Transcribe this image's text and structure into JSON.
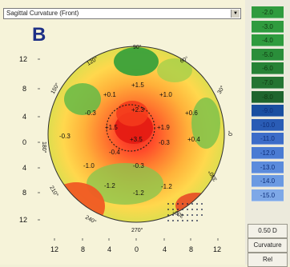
{
  "panel_label": "B",
  "map_selector": {
    "selected": "Sagittal Curvature (Front)",
    "arrow": "▼"
  },
  "axis_labels": {
    "left": [
      "12",
      "8",
      "4",
      "0",
      "4",
      "8",
      "12"
    ],
    "bottom": [
      "12",
      "8",
      "4",
      "0",
      "4",
      "8",
      "12"
    ]
  },
  "angle_labels": [
    "90°",
    "60°",
    "30°",
    "0°",
    "330°",
    "300°",
    "270°",
    "240°",
    "210°",
    "180°",
    "150°",
    "120°"
  ],
  "map_values": [
    "+1.5",
    "+0.1",
    "+1.0",
    "-0.3",
    "+2.3",
    "+0.6",
    "-0.3",
    "+1.5",
    "+1.9",
    "+3.5",
    "-0.3",
    "-0.4",
    "+0.4",
    "-1.0",
    "-0.3",
    "-1.2",
    "-1.2",
    "-1.2"
  ],
  "scale_values": [
    "-2.0",
    "-3.0",
    "-4.0",
    "-5.0",
    "-6.0",
    "-7.0",
    "-8.0",
    "-9.0",
    "-10.0",
    "-11.0",
    "-12.0",
    "-13.0",
    "-14.0",
    "-15.0"
  ],
  "scale_colors": [
    "#2f9b3e",
    "#2f9b3e",
    "#2f9b3e",
    "#2a8e3a",
    "#278236",
    "#247432",
    "#1f652d",
    "#1a4fa0",
    "#2a5cb5",
    "#3c6cc8",
    "#4a7bd3",
    "#5b8bdc",
    "#6b9ae2",
    "#7ea8e7"
  ],
  "scale_info": {
    "step": "0.50 D",
    "type": "Curvature",
    "mode": "Rel"
  },
  "colors": {
    "background": "#f6f3d9",
    "panel_letter": "#1d2f86",
    "contour_red": "#d91b17"
  }
}
